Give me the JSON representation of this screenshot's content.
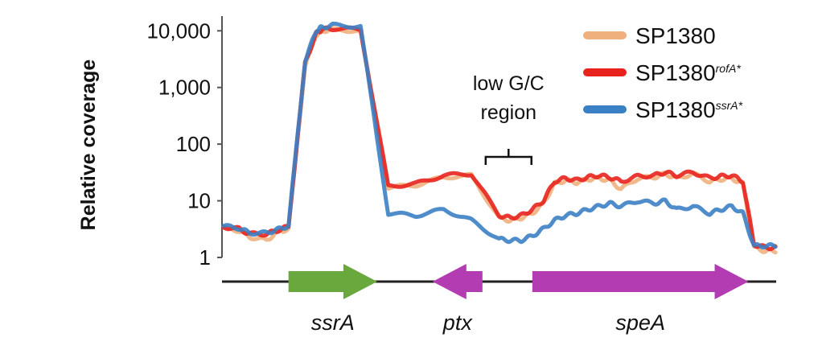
{
  "chart_data": {
    "type": "line",
    "title": "",
    "xlabel": "",
    "ylabel": "Relative coverage",
    "yscale": "log",
    "ylim": [
      1,
      15000
    ],
    "yticks": [
      {
        "value": 1,
        "label": "1"
      },
      {
        "value": 10,
        "label": "10"
      },
      {
        "value": 100,
        "label": "100"
      },
      {
        "value": 1000,
        "label": "1,000"
      },
      {
        "value": 10000,
        "label": "10,000"
      }
    ],
    "xlim": [
      0,
      100
    ],
    "grid": false,
    "legend_position": "top-right",
    "series": [
      {
        "name": "SP1380",
        "name_base": "SP1380",
        "name_sup": "",
        "color": "#f0b07e",
        "x": [
          0,
          3,
          5,
          8,
          10,
          12,
          15,
          17,
          18,
          20,
          25,
          30,
          35,
          40,
          45,
          50,
          52,
          54,
          56,
          58,
          60,
          62,
          64,
          66,
          68,
          70,
          72,
          75,
          78,
          80,
          82,
          85,
          88,
          90,
          92,
          94,
          96,
          98,
          100
        ],
        "y": [
          3.3,
          3.0,
          2.3,
          2.0,
          2.8,
          3.2,
          2500,
          8500,
          10000,
          10500,
          10000,
          17,
          19,
          26,
          28,
          5,
          4.5,
          5,
          6,
          9,
          20,
          23,
          21,
          24,
          25,
          23,
          16,
          25,
          26,
          30,
          25,
          30,
          22,
          24,
          25,
          20,
          1.5,
          1.3,
          1.3
        ]
      },
      {
        "name": "SP1380rofA*",
        "name_base": "SP1380",
        "name_sup": "rofA*",
        "color": "#e8231e",
        "x": [
          0,
          3,
          5,
          8,
          10,
          12,
          15,
          17,
          18,
          20,
          25,
          30,
          35,
          40,
          45,
          50,
          52,
          54,
          56,
          58,
          60,
          62,
          64,
          66,
          68,
          70,
          72,
          75,
          78,
          80,
          82,
          85,
          88,
          90,
          92,
          94,
          96,
          98,
          100
        ],
        "y": [
          3.5,
          3.2,
          2.6,
          2.6,
          3.0,
          3.5,
          2700,
          9000,
          10500,
          11000,
          10500,
          18,
          20,
          28,
          30,
          5.5,
          5,
          5.5,
          7,
          10,
          22,
          25,
          23,
          26,
          28,
          26,
          22,
          27,
          28,
          32,
          28,
          32,
          25,
          27,
          28,
          22,
          1.7,
          1.5,
          1.5
        ]
      },
      {
        "name": "SP1380ssrA*",
        "name_base": "SP1380",
        "name_sup": "ssrA*",
        "color": "#3b7fc4",
        "x": [
          0,
          3,
          5,
          8,
          10,
          12,
          15,
          17,
          18,
          20,
          25,
          30,
          35,
          40,
          45,
          50,
          52,
          54,
          56,
          58,
          60,
          62,
          64,
          66,
          68,
          70,
          72,
          75,
          78,
          80,
          82,
          85,
          88,
          90,
          92,
          94,
          96,
          98,
          100
        ],
        "y": [
          3.6,
          3.3,
          2.7,
          2.7,
          3.1,
          3.6,
          3000,
          10000,
          11500,
          12500,
          12000,
          6,
          5.5,
          7,
          4.5,
          2.1,
          2,
          2,
          2.4,
          3.2,
          4.5,
          5.5,
          6,
          7,
          8,
          9,
          8,
          10,
          9,
          10,
          7,
          8,
          6,
          7,
          8,
          6,
          1.6,
          1.6,
          1.6
        ]
      }
    ],
    "annotations": [
      {
        "text_lines": [
          "low G/C",
          "region"
        ],
        "x_range": [
          47,
          57
        ]
      }
    ],
    "genes": [
      {
        "label": "ssrA",
        "start": 12,
        "end": 28,
        "direction": "forward",
        "color": "#68a83d"
      },
      {
        "label": "ptx",
        "start": 38,
        "end": 47,
        "direction": "reverse",
        "color": "#b33cb3"
      },
      {
        "label": "speA",
        "start": 56,
        "end": 95,
        "direction": "forward",
        "color": "#b33cb3"
      }
    ]
  }
}
